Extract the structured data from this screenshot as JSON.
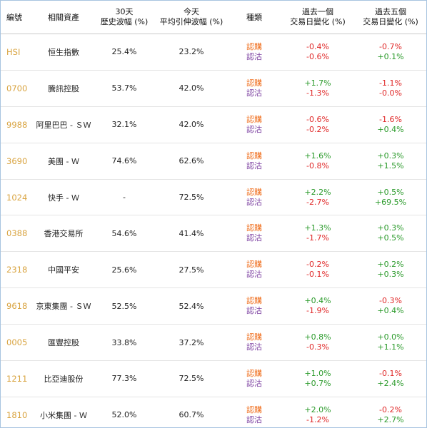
{
  "headers": {
    "code": "編號",
    "asset": "相關資產",
    "hv30_line1": "30天",
    "hv30_line2": "歷史波幅 (%)",
    "iv_line1": "今天",
    "iv_line2": "平均引伸波幅 (%)",
    "type": "種類",
    "chg1_line1": "過去一個",
    "chg1_line2": "交易日變化 (%)",
    "chg5_line1": "過去五個",
    "chg5_line2": "交易日變化 (%)"
  },
  "colors": {
    "call": "#ef6c1a",
    "put": "#7b3fa0",
    "negative": "#e02828",
    "positive": "#2a9a2a",
    "code": "#d9a441"
  },
  "rows": [
    {
      "code": "HSI",
      "name": "恒生指數",
      "hv30": "25.4%",
      "iv": "23.2%",
      "type_call": "認購",
      "type_put": "認沽",
      "d1_call": "-0.4%",
      "d1_put": "-0.6%",
      "d5_call": "-0.7%",
      "d5_put": "+0.1%"
    },
    {
      "code": "0700",
      "name": "騰訊控股",
      "hv30": "53.7%",
      "iv": "42.0%",
      "type_call": "認購",
      "type_put": "認沽",
      "d1_call": "+1.7%",
      "d1_put": "-1.3%",
      "d5_call": "-1.1%",
      "d5_put": "-0.0%"
    },
    {
      "code": "9988",
      "name": "阿里巴巴 - ＳＷ",
      "hv30": "32.1%",
      "iv": "42.0%",
      "type_call": "認購",
      "type_put": "認沽",
      "d1_call": "-0.6%",
      "d1_put": "-0.2%",
      "d5_call": "-1.6%",
      "d5_put": "+0.4%"
    },
    {
      "code": "3690",
      "name": "美團 - Ｗ",
      "hv30": "74.6%",
      "iv": "62.6%",
      "type_call": "認購",
      "type_put": "認沽",
      "d1_call": "+1.6%",
      "d1_put": "-0.8%",
      "d5_call": "+0.3%",
      "d5_put": "+1.5%"
    },
    {
      "code": "1024",
      "name": "快手 - Ｗ",
      "hv30": "-",
      "iv": "72.5%",
      "type_call": "認購",
      "type_put": "認沽",
      "d1_call": "+2.2%",
      "d1_put": "-2.7%",
      "d5_call": "+0.5%",
      "d5_put": "+69.5%"
    },
    {
      "code": "0388",
      "name": "香港交易所",
      "hv30": "54.6%",
      "iv": "41.4%",
      "type_call": "認購",
      "type_put": "認沽",
      "d1_call": "+1.3%",
      "d1_put": "-1.7%",
      "d5_call": "+0.3%",
      "d5_put": "+0.5%"
    },
    {
      "code": "2318",
      "name": "中國平安",
      "hv30": "25.6%",
      "iv": "27.5%",
      "type_call": "認購",
      "type_put": "認沽",
      "d1_call": "-0.2%",
      "d1_put": "-0.1%",
      "d5_call": "+0.2%",
      "d5_put": "+0.3%"
    },
    {
      "code": "9618",
      "name": "京東集團 - ＳＷ",
      "hv30": "52.5%",
      "iv": "52.4%",
      "type_call": "認購",
      "type_put": "認沽",
      "d1_call": "+0.4%",
      "d1_put": "-1.9%",
      "d5_call": "-0.3%",
      "d5_put": "+0.4%"
    },
    {
      "code": "0005",
      "name": "匯豐控股",
      "hv30": "33.8%",
      "iv": "37.2%",
      "type_call": "認購",
      "type_put": "認沽",
      "d1_call": "+0.8%",
      "d1_put": "-0.3%",
      "d5_call": "+0.0%",
      "d5_put": "+1.1%"
    },
    {
      "code": "1211",
      "name": "比亞迪股份",
      "hv30": "77.3%",
      "iv": "72.5%",
      "type_call": "認購",
      "type_put": "認沽",
      "d1_call": "+1.0%",
      "d1_put": "+0.7%",
      "d5_call": "-0.1%",
      "d5_put": "+2.4%"
    },
    {
      "code": "1810",
      "name": "小米集團 - Ｗ",
      "hv30": "52.0%",
      "iv": "60.7%",
      "type_call": "認購",
      "type_put": "認沽",
      "d1_call": "+2.0%",
      "d1_put": "-1.2%",
      "d5_call": "-0.2%",
      "d5_put": "+2.7%"
    }
  ]
}
